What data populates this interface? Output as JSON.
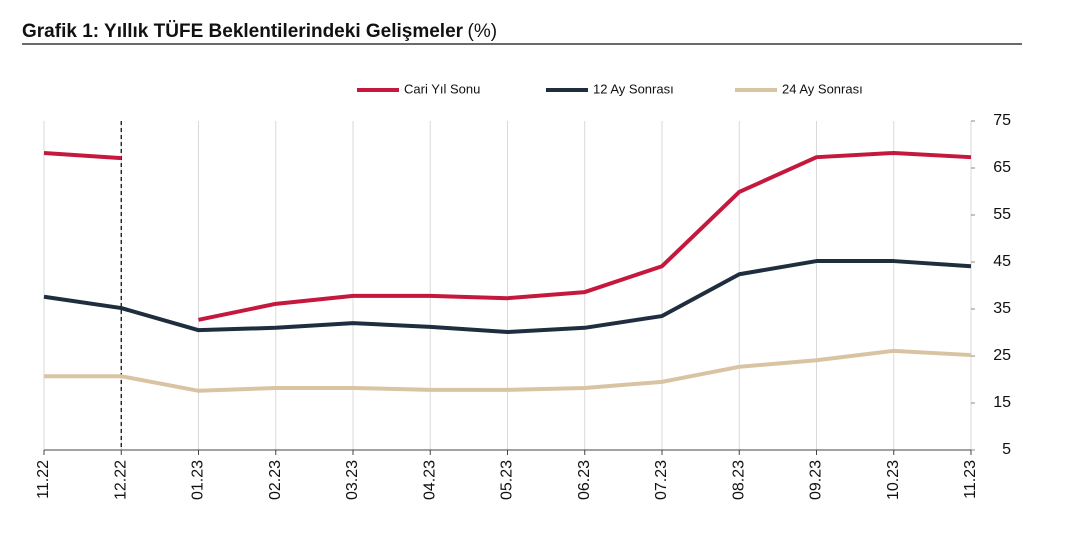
{
  "chart_data": {
    "type": "line",
    "title": "Grafik 1: Yıllık TÜFE Beklentilerindeki Gelişmeler",
    "title_unit": "(%)",
    "categories": [
      "11.22",
      "12.22",
      "01.23",
      "02.23",
      "03.23",
      "04.23",
      "05.23",
      "06.23",
      "07.23",
      "08.23",
      "09.23",
      "10.23",
      "11.23"
    ],
    "series": [
      {
        "name": "Cari Yıl Sonu",
        "color": "#c4183c",
        "break_at_divider": true,
        "values": [
          68.2,
          67.1,
          32.7,
          36.1,
          37.8,
          37.8,
          37.3,
          38.6,
          44.1,
          59.9,
          67.3,
          68.2,
          67.3
        ]
      },
      {
        "name": "12 Ay Sonrası",
        "color": "#1f2e3e",
        "break_at_divider": false,
        "values": [
          37.6,
          35.2,
          30.5,
          31.0,
          32.0,
          31.2,
          30.1,
          31.0,
          33.5,
          42.4,
          45.2,
          45.2,
          44.1
        ]
      },
      {
        "name": "24 Ay Sonrası",
        "color": "#d8c4a2",
        "break_at_divider": false,
        "values": [
          20.7,
          20.7,
          17.6,
          18.2,
          18.2,
          17.8,
          17.8,
          18.2,
          19.5,
          22.7,
          24.1,
          26.1,
          25.2
        ]
      }
    ],
    "ylim": [
      5,
      75
    ],
    "yticks": [
      5,
      15,
      25,
      35,
      45,
      55,
      65,
      75
    ],
    "y_axis_side": "right",
    "vertical_grid": true,
    "legend": "top",
    "divider_after_index": 1
  }
}
